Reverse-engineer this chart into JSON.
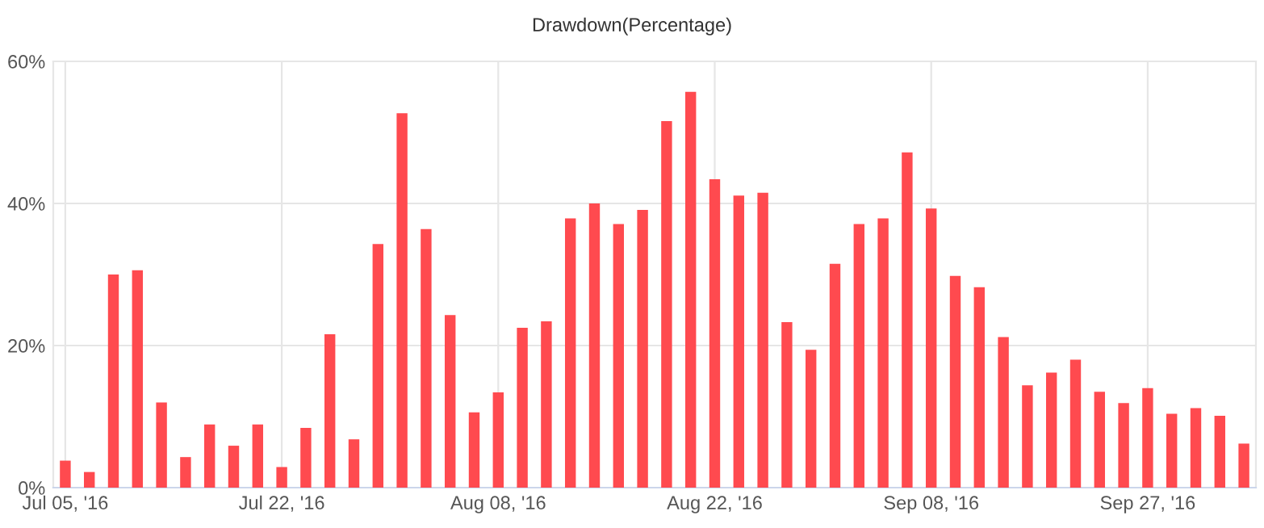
{
  "chart_data": {
    "type": "bar",
    "title": "Drawdown(Percentage)",
    "categories": [
      "Jul 05, '16",
      null,
      null,
      null,
      null,
      null,
      null,
      null,
      null,
      "Jul 22, '16",
      null,
      null,
      null,
      null,
      null,
      null,
      null,
      null,
      "Aug 08, '16",
      null,
      null,
      null,
      null,
      null,
      null,
      null,
      null,
      "Aug 22, '16",
      null,
      null,
      null,
      null,
      null,
      null,
      null,
      null,
      "Sep 08, '16",
      null,
      null,
      null,
      null,
      null,
      null,
      null,
      null,
      "Sep 27, '16",
      null,
      null,
      null,
      null
    ],
    "values": [
      3.8,
      2.2,
      30,
      30.6,
      12,
      4.3,
      8.9,
      5.9,
      8.9,
      2.9,
      8.4,
      21.6,
      6.8,
      34.3,
      52.7,
      36.4,
      24.3,
      10.6,
      13.4,
      22.5,
      23.4,
      37.9,
      40,
      37.1,
      39.1,
      51.6,
      55.7,
      43.4,
      41.1,
      41.5,
      23.3,
      19.4,
      31.5,
      37.1,
      37.9,
      47.2,
      39.3,
      29.8,
      28.2,
      21.2,
      14.4,
      16.2,
      18.0,
      13.5,
      11.9,
      14.0,
      10.4,
      11.2,
      10.1,
      6.2
    ],
    "color": "#ff4a4f",
    "ylim": [
      0,
      60
    ],
    "yticks": [
      {
        "value": 0,
        "label": "0%"
      },
      {
        "value": 20,
        "label": "20%"
      },
      {
        "value": 40,
        "label": "40%"
      },
      {
        "value": 60,
        "label": "60%"
      }
    ],
    "grid": true,
    "legend": false
  }
}
